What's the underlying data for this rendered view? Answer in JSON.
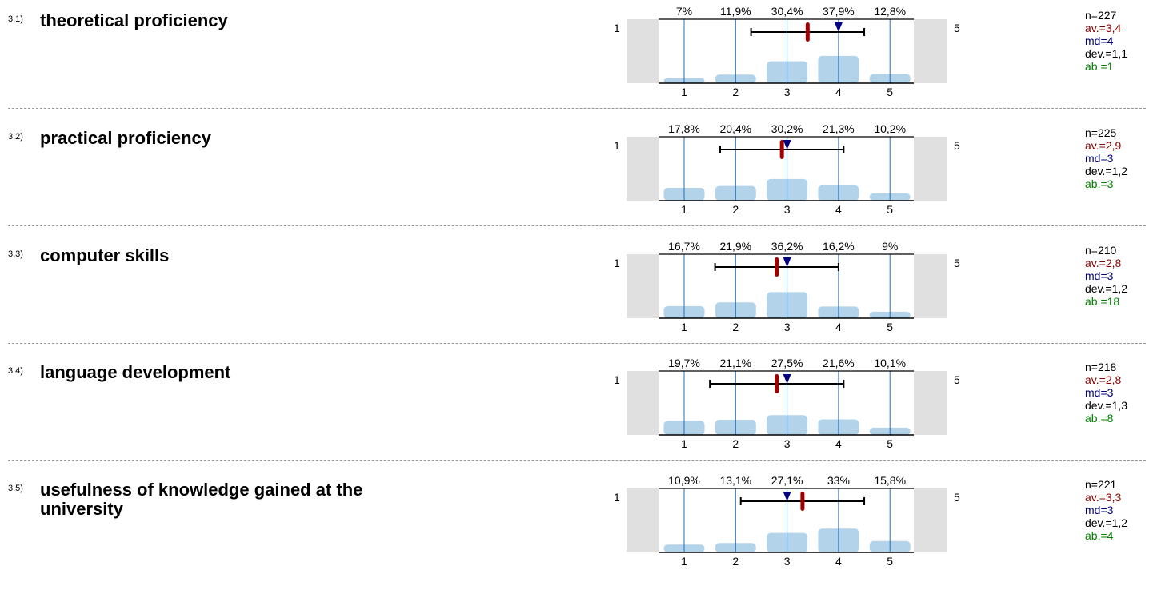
{
  "colors": {
    "bar": "#b3d3ea",
    "gridline": "#1f6fb6",
    "side_panel": "#e0e0e0",
    "mean": "#a00000",
    "median": "#000080",
    "deviation": "#000000",
    "stat_n": "#000000",
    "stat_av": "#8b0000",
    "stat_md": "#000080",
    "stat_dev": "#000000",
    "stat_ab": "#008000"
  },
  "scale": {
    "left_label": "1",
    "right_label": "5"
  },
  "chart_data": [
    {
      "type": "bar",
      "id": "3.1)",
      "title": "theoretical proficiency",
      "categories": [
        "1",
        "2",
        "3",
        "4",
        "5"
      ],
      "percent_labels": [
        "7%",
        "11,9%",
        "30,4%",
        "37,9%",
        "12,8%"
      ],
      "values": [
        7,
        11.9,
        30.4,
        37.9,
        12.8
      ],
      "mean": 3.4,
      "median": 4,
      "deviation": 1.1,
      "stats": {
        "n": "n=227",
        "av": "av.=3,4",
        "md": "md=4",
        "dev": "dev.=1,1",
        "ab": "ab.=1"
      }
    },
    {
      "type": "bar",
      "id": "3.2)",
      "title": "practical proficiency",
      "categories": [
        "1",
        "2",
        "3",
        "4",
        "5"
      ],
      "percent_labels": [
        "17,8%",
        "20,4%",
        "30,2%",
        "21,3%",
        "10,2%"
      ],
      "values": [
        17.8,
        20.4,
        30.2,
        21.3,
        10.2
      ],
      "mean": 2.9,
      "median": 3,
      "deviation": 1.2,
      "stats": {
        "n": "n=225",
        "av": "av.=2,9",
        "md": "md=3",
        "dev": "dev.=1,2",
        "ab": "ab.=3"
      }
    },
    {
      "type": "bar",
      "id": "3.3)",
      "title": "computer skills",
      "categories": [
        "1",
        "2",
        "3",
        "4",
        "5"
      ],
      "percent_labels": [
        "16,7%",
        "21,9%",
        "36,2%",
        "16,2%",
        "9%"
      ],
      "values": [
        16.7,
        21.9,
        36.2,
        16.2,
        9
      ],
      "mean": 2.8,
      "median": 3,
      "deviation": 1.2,
      "stats": {
        "n": "n=210",
        "av": "av.=2,8",
        "md": "md=3",
        "dev": "dev.=1,2",
        "ab": "ab.=18"
      }
    },
    {
      "type": "bar",
      "id": "3.4)",
      "title": "language development",
      "categories": [
        "1",
        "2",
        "3",
        "4",
        "5"
      ],
      "percent_labels": [
        "19,7%",
        "21,1%",
        "27,5%",
        "21,6%",
        "10,1%"
      ],
      "values": [
        19.7,
        21.1,
        27.5,
        21.6,
        10.1
      ],
      "mean": 2.8,
      "median": 3,
      "deviation": 1.3,
      "stats": {
        "n": "n=218",
        "av": "av.=2,8",
        "md": "md=3",
        "dev": "dev.=1,3",
        "ab": "ab.=8"
      }
    },
    {
      "type": "bar",
      "id": "3.5)",
      "title": "usefulness of knowledge gained at the university",
      "categories": [
        "1",
        "2",
        "3",
        "4",
        "5"
      ],
      "percent_labels": [
        "10,9%",
        "13,1%",
        "27,1%",
        "33%",
        "15,8%"
      ],
      "values": [
        10.9,
        13.1,
        27.1,
        33,
        15.8
      ],
      "mean": 3.3,
      "median": 3,
      "deviation": 1.2,
      "stats": {
        "n": "n=221",
        "av": "av.=3,3",
        "md": "md=3",
        "dev": "dev.=1,2",
        "ab": "ab.=4"
      }
    }
  ]
}
